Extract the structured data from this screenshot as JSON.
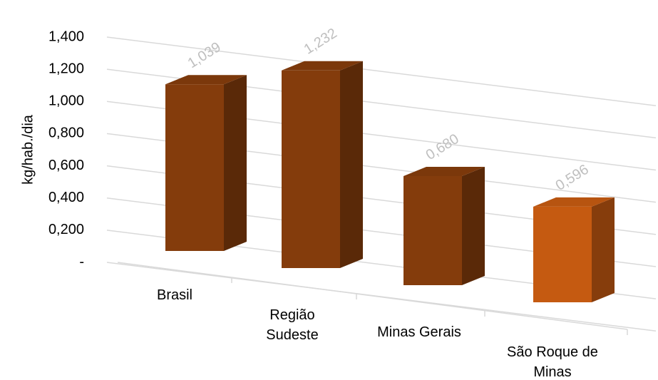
{
  "chart_data": {
    "type": "bar3d",
    "ylabel": "kg/hab./dia",
    "categories": [
      "Brasil",
      "Região Sudeste",
      "Minas Gerais",
      "São Roque de Minas"
    ],
    "values": [
      1.039,
      1.232,
      0.68,
      0.596
    ],
    "value_labels": [
      "1,039",
      "1,232",
      "0,680",
      "0,596"
    ],
    "colors": [
      "#843c0c",
      "#843c0c",
      "#843c0c",
      "#c55a11"
    ],
    "ylim": [
      0,
      1.4
    ],
    "yticks": [
      {
        "value": 0,
        "label": "-"
      },
      {
        "value": 0.2,
        "label": "0,200"
      },
      {
        "value": 0.4,
        "label": "0,400"
      },
      {
        "value": 0.6,
        "label": "0,600"
      },
      {
        "value": 0.8,
        "label": "0,800"
      },
      {
        "value": 1.0,
        "label": "1,000"
      },
      {
        "value": 1.2,
        "label": "1,200"
      },
      {
        "value": 1.4,
        "label": "1,400"
      }
    ],
    "grid": true
  }
}
